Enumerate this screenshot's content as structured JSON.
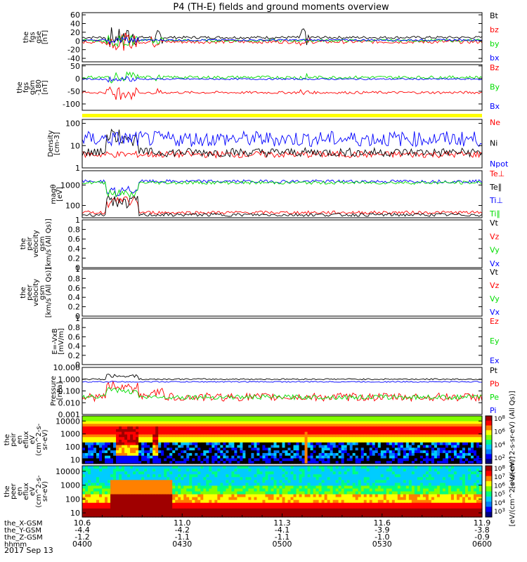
{
  "title": "P4 (TH-E) fields and ground moments overview",
  "colors": {
    "black": "#000000",
    "red": "#ff0000",
    "green": "#00dd00",
    "blue": "#0000ff",
    "yellow": "#ffff00"
  },
  "date_label": "2017 Sep 13",
  "chart_data": [
    {
      "id": "fgs-gse",
      "type": "line",
      "ylabel_lines": [
        "the",
        "fgs",
        "gse",
        "[nT]"
      ],
      "yticks": [
        60,
        40,
        20,
        0,
        -20,
        -40
      ],
      "ylim": [
        -48,
        65
      ],
      "series": [
        {
          "name": "Bt",
          "color": "black",
          "baseline": 8,
          "noise": 3,
          "bursts": [
            [
              0.06,
              0.14,
              22
            ],
            [
              0.17,
              0.2,
              15
            ],
            [
              0.54,
              0.57,
              20
            ]
          ]
        },
        {
          "name": "bz",
          "color": "red",
          "baseline": -2,
          "noise": 4,
          "bursts": [
            [
              0.06,
              0.14,
              18
            ],
            [
              0.17,
              0.2,
              12
            ],
            [
              0.54,
              0.57,
              12
            ]
          ]
        },
        {
          "name": "by",
          "color": "green",
          "baseline": 1,
          "noise": 3,
          "bursts": [
            [
              0.06,
              0.14,
              14
            ],
            [
              0.17,
              0.2,
              10
            ]
          ]
        },
        {
          "name": "bx",
          "color": "blue",
          "baseline": 2,
          "noise": 2,
          "bursts": [
            [
              0.06,
              0.14,
              8
            ]
          ]
        }
      ]
    },
    {
      "id": "fgs-gsm",
      "type": "line",
      "ylabel_lines": [
        "the",
        "fgs",
        "gsm",
        "-180",
        "[nT]"
      ],
      "yticks": [
        50,
        0,
        -50,
        -100
      ],
      "ylim": [
        -125,
        55
      ],
      "series": [
        {
          "name": "Bz",
          "color": "red",
          "baseline": -55,
          "noise": 5,
          "bursts": [
            [
              0.06,
              0.14,
              25
            ],
            [
              0.17,
              0.2,
              12
            ],
            [
              0.54,
              0.57,
              12
            ]
          ]
        },
        {
          "name": "By",
          "color": "green",
          "baseline": 5,
          "noise": 6,
          "bursts": [
            [
              0.06,
              0.14,
              20
            ],
            [
              0.17,
              0.2,
              12
            ],
            [
              0.54,
              0.57,
              12
            ]
          ]
        },
        {
          "name": "Bx",
          "color": "blue",
          "baseline": -2,
          "noise": 3,
          "bursts": [
            [
              0.06,
              0.14,
              10
            ]
          ]
        }
      ]
    },
    {
      "id": "density",
      "type": "line",
      "scale": "log",
      "ylabel_lines": [
        "Density",
        "[cm-3]"
      ],
      "yticks": [
        100,
        10,
        1
      ],
      "ylim": [
        1,
        150
      ],
      "series": [
        {
          "name": "Ne",
          "color": "red",
          "baseline": 4,
          "noise": 0.15,
          "bursts": []
        },
        {
          "name": "Ni",
          "color": "black",
          "baseline": 5,
          "noise": 0.2,
          "bursts": [
            [
              0.06,
              0.14,
              1.0
            ]
          ]
        },
        {
          "name": "Npot",
          "color": "blue",
          "baseline": 20,
          "noise": 0.35,
          "bursts": []
        }
      ]
    },
    {
      "id": "temperature",
      "type": "line",
      "scale": "log",
      "ylabel_lines": [
        "magθ",
        "[eV]"
      ],
      "yticks": [
        1000,
        100
      ],
      "ylim": [
        25,
        5000
      ],
      "series": [
        {
          "name": "Te⊥",
          "color": "red",
          "baseline": 45,
          "noise": 0.08,
          "bursts": [
            [
              0.06,
              0.14,
              0.8
            ]
          ]
        },
        {
          "name": "Te∥",
          "color": "black",
          "baseline": 35,
          "noise": 0.08,
          "bursts": [
            [
              0.06,
              0.14,
              0.9
            ]
          ]
        },
        {
          "name": "Ti⊥",
          "color": "blue",
          "baseline": 1500,
          "noise": 0.08,
          "bursts": [
            [
              0.06,
              0.14,
              -0.7
            ]
          ]
        },
        {
          "name": "Ti∥",
          "color": "green",
          "baseline": 1300,
          "noise": 0.08,
          "bursts": [
            [
              0.06,
              0.14,
              -0.7
            ]
          ]
        }
      ]
    },
    {
      "id": "peir-velocity",
      "type": "line",
      "ylabel_lines": [
        "the",
        "peir",
        "velocity",
        "gsm",
        "[km/s (All Qs)]"
      ],
      "yticks": [
        1.0,
        0.8,
        0.6,
        0.4,
        0.2,
        0.0
      ],
      "ylim": [
        0,
        1
      ],
      "series": [
        {
          "name": "Vt",
          "color": "black"
        },
        {
          "name": "Vz",
          "color": "red"
        },
        {
          "name": "Vy",
          "color": "green"
        },
        {
          "name": "Vx",
          "color": "blue"
        }
      ]
    },
    {
      "id": "peer-velocity",
      "type": "line",
      "ylabel_lines": [
        "the",
        "peer",
        "velocity",
        "gsm",
        "[km/s (All Qs)]"
      ],
      "yticks": [
        1.0,
        0.8,
        0.6,
        0.4,
        0.2,
        0.0
      ],
      "ylim": [
        0,
        1
      ],
      "series": [
        {
          "name": "Vt",
          "color": "black"
        },
        {
          "name": "Vz",
          "color": "red"
        },
        {
          "name": "Vy",
          "color": "green"
        },
        {
          "name": "Vx",
          "color": "blue"
        }
      ]
    },
    {
      "id": "efield",
      "type": "line",
      "ylabel_lines": [
        "E=-VxB",
        "[mV/m]"
      ],
      "yticks": [
        1.0,
        0.8,
        0.6,
        0.4,
        0.2,
        0.0
      ],
      "ylim": [
        0,
        1
      ],
      "series": [
        {
          "name": "Ez",
          "color": "red"
        },
        {
          "name": "Ey",
          "color": "green"
        },
        {
          "name": "Ex",
          "color": "blue"
        }
      ]
    },
    {
      "id": "pressure",
      "type": "line",
      "scale": "log",
      "ylabel_lines": [
        "Pressure",
        "[nPa]"
      ],
      "yticks": [
        10.0,
        1.0,
        0.1,
        0.01,
        0.001
      ],
      "tick_labels": [
        "10.000",
        "1.000",
        "0.100",
        "0.010",
        "0.001"
      ],
      "ylim": [
        0.001,
        10
      ],
      "series": [
        {
          "name": "Pt",
          "color": "black",
          "baseline": 1.0,
          "noise": 0.06,
          "bursts": [
            [
              0.06,
              0.14,
              0.4
            ]
          ]
        },
        {
          "name": "Pb",
          "color": "red",
          "baseline": 0.03,
          "noise": 0.35,
          "bursts": [
            [
              0.06,
              0.14,
              1.2
            ],
            [
              0.17,
              0.2,
              0.8
            ]
          ]
        },
        {
          "name": "Pe",
          "color": "green",
          "baseline": 0.03,
          "noise": 0.2,
          "bursts": [
            [
              0.06,
              0.14,
              0.8
            ]
          ]
        },
        {
          "name": "Pi",
          "color": "blue",
          "baseline": 0.6,
          "noise": 0.05,
          "bursts": []
        }
      ]
    },
    {
      "id": "peir-eflux",
      "type": "heatmap",
      "ylabel_lines": [
        "the",
        "peir",
        "en",
        "eflux",
        "eV",
        "(cm^2-s-",
        "sr-eV)"
      ],
      "yticks": [
        10000,
        1000,
        100,
        10
      ],
      "ylim": [
        5,
        25000
      ],
      "colorbar": {
        "label": "[eV/(cm^2-s-sr-eV) (All Qs)]",
        "exponents": [
          "8",
          "6",
          "4",
          "2"
        ]
      }
    },
    {
      "id": "peer-eflux",
      "type": "heatmap",
      "ylabel_lines": [
        "the",
        "peer",
        "en",
        "eflux",
        "eV",
        "(cm^2-s-",
        "sr-eV)"
      ],
      "yticks": [
        10000,
        1000,
        100,
        10
      ],
      "ylim": [
        5,
        25000
      ],
      "colorbar": {
        "label": "[eV/(cm^2-s-sr-eV)]",
        "exponents": [
          "8",
          "7",
          "6",
          "5",
          "4",
          "3"
        ]
      }
    }
  ],
  "x_axis": {
    "row_labels": [
      "the_X-GSM",
      "the_Y-GSM",
      "the_Z-GSM",
      "hhmm"
    ],
    "columns": [
      {
        "t": 0.0,
        "values": [
          "10.6",
          "-4.4",
          "-1.2",
          "0400"
        ]
      },
      {
        "t": 0.25,
        "values": [
          "11.0",
          "-4.2",
          "-1.1",
          "0430"
        ]
      },
      {
        "t": 0.5,
        "values": [
          "11.3",
          "-4.1",
          "-1.1",
          "0500"
        ]
      },
      {
        "t": 0.75,
        "values": [
          "11.6",
          "-3.9",
          "-1.0",
          "0530"
        ]
      },
      {
        "t": 1.0,
        "values": [
          "11.9",
          "-3.8",
          "-0.9",
          "0600"
        ]
      }
    ]
  }
}
